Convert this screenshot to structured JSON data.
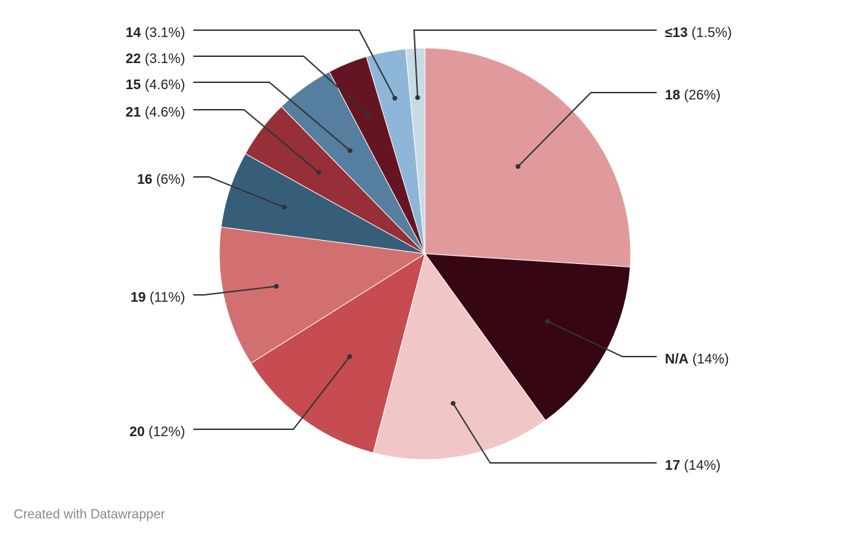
{
  "chart_data": {
    "type": "pie",
    "title": "",
    "slices": [
      {
        "label": "18",
        "percent_label": "(26%)",
        "value": 26,
        "color": "#e19a9c"
      },
      {
        "label": "N/A",
        "percent_label": "(14%)",
        "value": 14,
        "color": "#360612"
      },
      {
        "label": "17",
        "percent_label": "(14%)",
        "value": 14,
        "color": "#f0c6c6"
      },
      {
        "label": "20",
        "percent_label": "(12%)",
        "value": 12,
        "color": "#c64c51"
      },
      {
        "label": "19",
        "percent_label": "(11%)",
        "value": 11,
        "color": "#d27071"
      },
      {
        "label": "16",
        "percent_label": "(6%)",
        "value": 6,
        "color": "#375e79"
      },
      {
        "label": "21",
        "percent_label": "(4.6%)",
        "value": 4.6,
        "color": "#962f37"
      },
      {
        "label": "15",
        "percent_label": "(4.6%)",
        "value": 4.6,
        "color": "#557e9f"
      },
      {
        "label": "22",
        "percent_label": "(3.1%)",
        "value": 3.1,
        "color": "#651521"
      },
      {
        "label": "14",
        "percent_label": "(3.1%)",
        "value": 3.1,
        "color": "#8db6d9"
      },
      {
        "label": "≤13",
        "percent_label": "(1.5%)",
        "value": 1.5,
        "color": "#c8dbe4"
      }
    ]
  },
  "credit": "Created with Datawrapper"
}
